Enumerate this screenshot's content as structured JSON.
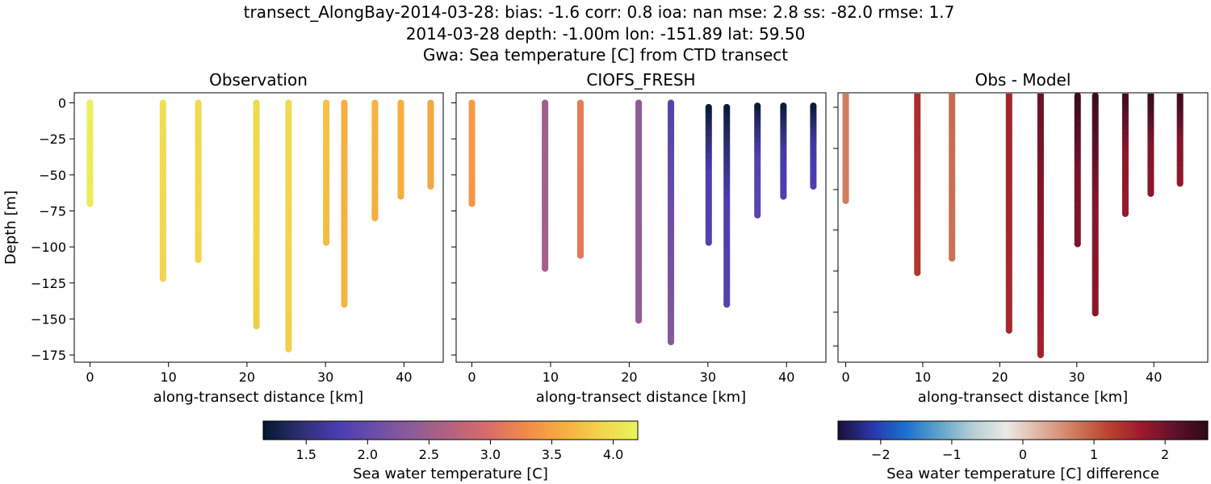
{
  "figure": {
    "title_lines": [
      "transect_AlongBay-2014-03-28: bias: -1.6  corr: 0.8  ioa: nan  mse: 2.8  ss: -82.0  rmse: 1.7",
      "2014-03-28 depth: -1.00m lon: -151.89 lat: 59.50",
      "Gwa: Sea temperature [C] from CTD transect"
    ]
  },
  "colorbars": [
    {
      "label": "Sea water temperature [C]",
      "range": [
        1.15,
        4.2
      ],
      "ticks": [
        1.5,
        2.0,
        2.5,
        3.0,
        3.5,
        4.0
      ],
      "tick_labels": [
        "1.5",
        "2.0",
        "2.5",
        "3.0",
        "3.5",
        "4.0"
      ],
      "colormap": [
        "#04182e",
        "#2e2f73",
        "#4a3db0",
        "#6b4ea8",
        "#8e5c98",
        "#b5627f",
        "#d96c6a",
        "#f08a4a",
        "#f6ad3f",
        "#f3d44b",
        "#e7f65b"
      ]
    },
    {
      "label": "Sea water temperature [C] difference",
      "range": [
        -2.6,
        2.6
      ],
      "ticks": [
        -2,
        -1,
        0,
        1,
        2
      ],
      "tick_labels": [
        "−2",
        "−1",
        "0",
        "1",
        "2"
      ],
      "colormap": [
        "#1a1036",
        "#2936a8",
        "#1b6fd0",
        "#5fa3c8",
        "#b3cfd6",
        "#ece9e6",
        "#dfb4a2",
        "#cf7d5e",
        "#bb4530",
        "#9e1a2c",
        "#60112a",
        "#2b0b12"
      ]
    }
  ],
  "chart_data": [
    {
      "type": "scatter",
      "title": "Observation",
      "xlabel": "along-transect distance [km]",
      "ylabel": "Depth [m]",
      "xlim": [
        -2,
        45
      ],
      "ylim": [
        -180,
        7
      ],
      "x_ticks": [
        0,
        10,
        20,
        30,
        40
      ],
      "y_ticks": [
        0,
        -25,
        -50,
        -75,
        -100,
        -125,
        -150,
        -175
      ],
      "y_tick_labels": [
        "0",
        "−25",
        "−50",
        "−75",
        "−100",
        "−125",
        "−150",
        "−175"
      ],
      "colorbar": 0,
      "casts": [
        {
          "x": 0.0,
          "top": 0,
          "bottom": -70,
          "values": [
            4.15,
            4.1
          ]
        },
        {
          "x": 9.3,
          "top": 0,
          "bottom": -122,
          "values": [
            4.0,
            3.9
          ]
        },
        {
          "x": 13.8,
          "top": 0,
          "bottom": -109,
          "values": [
            3.95,
            3.9
          ]
        },
        {
          "x": 21.2,
          "top": 0,
          "bottom": -155,
          "values": [
            3.95,
            3.85
          ]
        },
        {
          "x": 25.3,
          "top": 0,
          "bottom": -171,
          "values": [
            3.95,
            3.85
          ]
        },
        {
          "x": 30.1,
          "top": 0,
          "bottom": -97,
          "values": [
            3.75,
            3.7
          ]
        },
        {
          "x": 32.4,
          "top": 0,
          "bottom": -140,
          "values": [
            3.6,
            3.65
          ]
        },
        {
          "x": 36.3,
          "top": 0,
          "bottom": -80,
          "values": [
            3.65,
            3.6
          ]
        },
        {
          "x": 39.6,
          "top": 0,
          "bottom": -65,
          "values": [
            3.6,
            3.6
          ]
        },
        {
          "x": 43.4,
          "top": 0,
          "bottom": -58,
          "values": [
            3.55,
            3.55
          ]
        }
      ]
    },
    {
      "type": "scatter",
      "title": "CIOFS_FRESH",
      "xlabel": "along-transect distance [km]",
      "ylabel": "",
      "xlim": [
        -2,
        45
      ],
      "ylim": [
        -180,
        7
      ],
      "x_ticks": [
        0,
        10,
        20,
        30,
        40
      ],
      "y_ticks": [
        0,
        -25,
        -50,
        -75,
        -100,
        -125,
        -150,
        -175
      ],
      "colorbar": 0,
      "casts": [
        {
          "x": 0.0,
          "top": 0,
          "bottom": -70,
          "values": [
            3.45,
            3.4
          ]
        },
        {
          "x": 9.3,
          "top": 0,
          "bottom": -115,
          "values": [
            2.5,
            2.55
          ]
        },
        {
          "x": 13.8,
          "top": 0,
          "bottom": -106,
          "values": [
            3.15,
            3.1
          ]
        },
        {
          "x": 21.2,
          "top": 0,
          "bottom": -151,
          "values": [
            2.35,
            2.4
          ]
        },
        {
          "x": 25.3,
          "top": 0,
          "bottom": -166,
          "values": [
            1.85,
            2.3
          ]
        },
        {
          "x": 30.1,
          "top": -3,
          "bottom": -97,
          "values": [
            1.2,
            1.8,
            1.85
          ]
        },
        {
          "x": 32.4,
          "top": -3,
          "bottom": -140,
          "values": [
            1.2,
            1.8,
            1.85
          ]
        },
        {
          "x": 36.3,
          "top": -2,
          "bottom": -78,
          "values": [
            1.2,
            1.85,
            1.9
          ]
        },
        {
          "x": 39.6,
          "top": -2,
          "bottom": -65,
          "values": [
            1.2,
            1.7,
            1.8
          ]
        },
        {
          "x": 43.4,
          "top": -2,
          "bottom": -58,
          "values": [
            1.2,
            1.7,
            1.8
          ]
        }
      ]
    },
    {
      "type": "scatter",
      "title": "Obs - Model",
      "xlabel": "along-transect distance [km]",
      "ylabel": "",
      "xlim": [
        -1,
        47
      ],
      "ylim": [
        -180,
        7
      ],
      "x_ticks": [
        0,
        10,
        20,
        30,
        40
      ],
      "colorbar": 1,
      "casts": [
        {
          "x": 0.0,
          "top": 7,
          "bottom": -68,
          "values": [
            0.7,
            0.7
          ]
        },
        {
          "x": 9.3,
          "top": 7,
          "bottom": -118,
          "values": [
            1.45,
            1.35
          ]
        },
        {
          "x": 13.8,
          "top": 7,
          "bottom": -108,
          "values": [
            0.85,
            0.8
          ]
        },
        {
          "x": 21.2,
          "top": 7,
          "bottom": -158,
          "values": [
            1.55,
            1.5
          ]
        },
        {
          "x": 25.3,
          "top": 7,
          "bottom": -175,
          "values": [
            2.05,
            1.55
          ]
        },
        {
          "x": 30.1,
          "top": 5,
          "bottom": -98,
          "values": [
            2.45,
            1.95,
            1.9
          ]
        },
        {
          "x": 32.4,
          "top": 5,
          "bottom": -146,
          "values": [
            2.45,
            1.85,
            1.8
          ]
        },
        {
          "x": 36.3,
          "top": 7,
          "bottom": -77,
          "values": [
            2.4,
            1.8,
            1.7
          ]
        },
        {
          "x": 39.6,
          "top": 7,
          "bottom": -63,
          "values": [
            2.5,
            1.9,
            1.8
          ]
        },
        {
          "x": 43.4,
          "top": 7,
          "bottom": -56,
          "values": [
            2.5,
            1.9,
            1.75
          ]
        }
      ]
    }
  ]
}
